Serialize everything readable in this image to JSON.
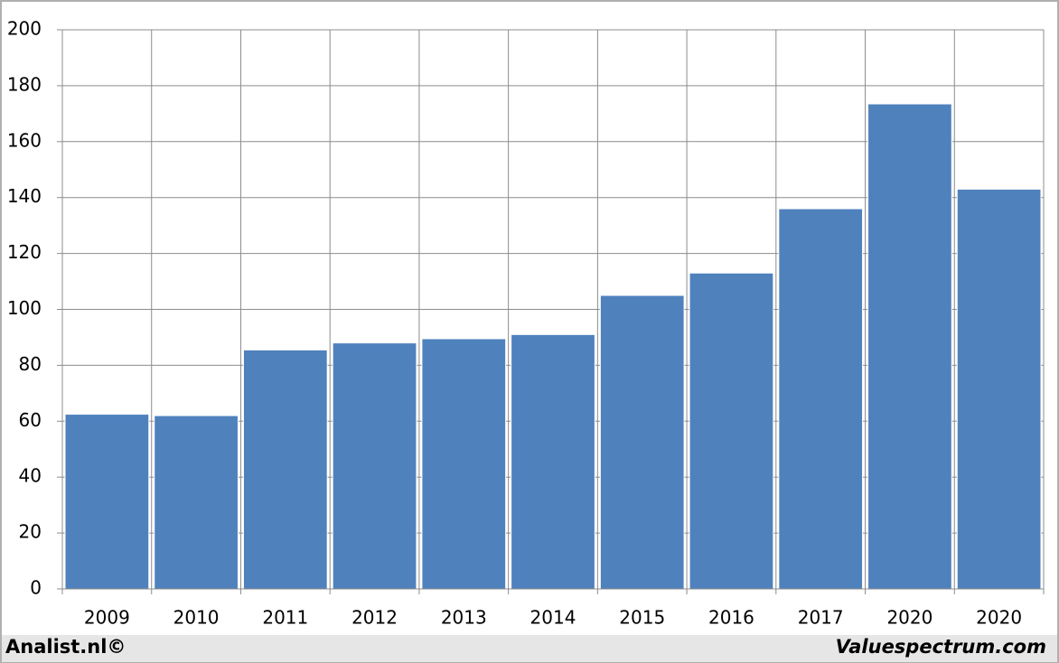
{
  "chart_data": {
    "type": "bar",
    "categories": [
      "2009",
      "2010",
      "2011",
      "2012",
      "2013",
      "2014",
      "2015",
      "2016",
      "2017",
      "2020",
      "2020"
    ],
    "values": [
      62.5,
      62,
      85.5,
      88,
      89.5,
      91,
      105,
      113,
      136,
      173.5,
      143
    ],
    "color": "#4f81bd",
    "ylim": [
      0,
      200
    ],
    "yticks": [
      0,
      20,
      40,
      60,
      80,
      100,
      120,
      140,
      160,
      180,
      200
    ],
    "grid": true,
    "credits": [
      "Analist.nl©",
      "Valuespectrum.com"
    ]
  }
}
